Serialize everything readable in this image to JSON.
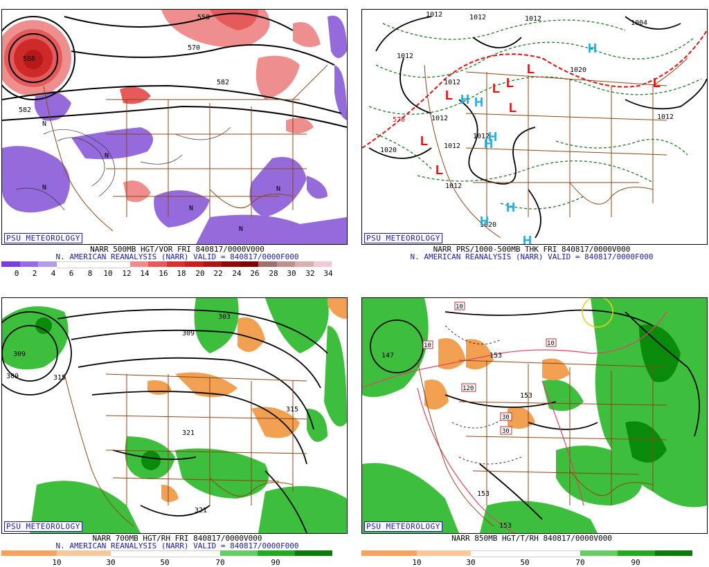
{
  "branding": "PSU METEOROLOGY",
  "panels": [
    {
      "id": "vor",
      "caption_line1": "NARR 500MB HGT/VOR FRI 840817/0000V000",
      "caption_line2": "N. AMERICAN REANALYSIS (NARR) VALID = 840817/0000F000",
      "contour_labels": [
        "558",
        "570",
        "582",
        "582",
        "588",
        "N",
        "N",
        "N",
        "N",
        "N",
        "N"
      ],
      "scale_ticks": [
        "0",
        "2",
        "4",
        "6",
        "8",
        "10",
        "12",
        "14",
        "16",
        "18",
        "20",
        "22",
        "24",
        "26",
        "28",
        "30",
        "32",
        "34"
      ],
      "scale_colors": [
        "#7a3fd6",
        "#9a6ae0",
        "#b69be9",
        "#ffffff",
        "#ffffff",
        "#ffffff",
        "#ffffff",
        "#ee8c8c",
        "#e45a5a",
        "#d93030",
        "#c81f1f",
        "#b01515",
        "#8e0a0a",
        "#7a0505",
        "#a07070",
        "#c09090",
        "#d8b0b0",
        "#f2c8d8"
      ]
    },
    {
      "id": "prs",
      "caption_line1": "NARR PRS/1000-500MB THK FRI 840817/0000V000",
      "caption_line2": "N. AMERICAN REANALYSIS (NARR) VALID = 840817/0000F000",
      "contour_labels": [
        "1012",
        "1012",
        "1012",
        "1004",
        "1012",
        "1020",
        "1012",
        "1012",
        "1012",
        "1012",
        "1020",
        "1020",
        "1012",
        "1012",
        "570"
      ],
      "highs": [
        "H",
        "H",
        "H",
        "H",
        "H",
        "H",
        "H",
        "H"
      ],
      "lows": [
        "L",
        "L",
        "L",
        "L",
        "L",
        "L",
        "L",
        "L"
      ]
    },
    {
      "id": "rh",
      "caption_line1": "NARR 700MB HGT/RH FRI 840817/0000V000",
      "caption_line2": "N. AMERICAN REANALYSIS (NARR) VALID = 840817/0000F000",
      "contour_labels": [
        "309",
        "309",
        "315",
        "303",
        "309",
        "315",
        "321",
        "321"
      ],
      "scale_ticks": [
        "10",
        "30",
        "50",
        "70",
        "90"
      ],
      "scale_colors": [
        "#f4a460",
        "#f8c79a",
        "#ffffff",
        "#ffffff",
        "#66cc66",
        "#22aa22",
        "#0a7a0a"
      ]
    },
    {
      "id": "t",
      "caption_line1": "NARR 850MB HGT/T/RH 840817/0000V000",
      "contour_labels": [
        "147",
        "153",
        "153",
        "153",
        "153",
        "10",
        "10",
        "10",
        "120",
        "30",
        "30"
      ],
      "scale_ticks": [
        "10",
        "30",
        "50",
        "70",
        "90"
      ],
      "scale_colors": [
        "#f4a460",
        "#f8c79a",
        "#ffffff",
        "#ffffff",
        "#66cc66",
        "#22aa22",
        "#0a7a0a"
      ]
    }
  ]
}
